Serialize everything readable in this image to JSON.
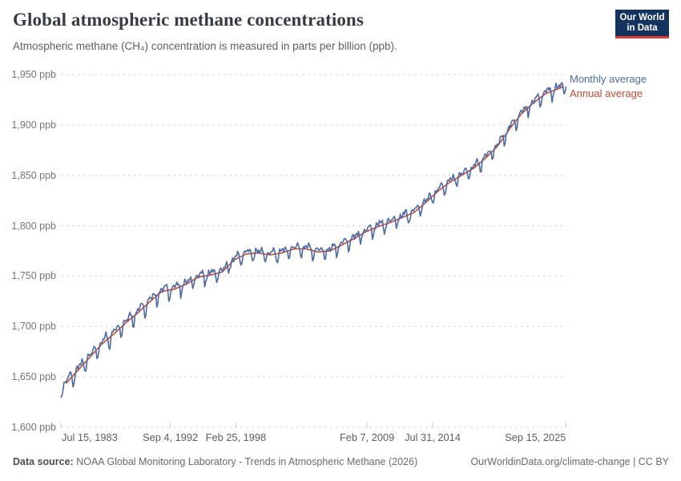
{
  "header": {
    "title": "Global atmospheric methane concentrations",
    "subtitle": "Atmospheric methane (CH₄) concentration is measured in parts per billion (ppb).",
    "logo": {
      "line1": "Our World",
      "line2": "in Data",
      "bg": "#15335f",
      "accent": "#dc3b31"
    }
  },
  "chart_data": {
    "type": "line",
    "title": "Global atmospheric methane concentrations",
    "xlabel": "",
    "ylabel": "ppb",
    "ylim": [
      1600,
      1950
    ],
    "xlim": [
      1983.54,
      2025.75
    ],
    "grid": true,
    "legend_position": "right-of-plot",
    "y_ticks": [
      {
        "value": 1950,
        "label": "1,950 ppb"
      },
      {
        "value": 1900,
        "label": "1,900 ppb"
      },
      {
        "value": 1850,
        "label": "1,850 ppb"
      },
      {
        "value": 1800,
        "label": "1,800 ppb"
      },
      {
        "value": 1750,
        "label": "1,750 ppb"
      },
      {
        "value": 1700,
        "label": "1,700 ppb"
      },
      {
        "value": 1650,
        "label": "1,650 ppb"
      },
      {
        "value": 1600,
        "label": "1,600 ppb"
      }
    ],
    "x_ticks": [
      {
        "t": 1983.54,
        "label": "Jul 15, 1983"
      },
      {
        "t": 1992.68,
        "label": "Sep 4, 1992"
      },
      {
        "t": 1998.15,
        "label": "Feb 25, 1998"
      },
      {
        "t": 2009.1,
        "label": "Feb 7, 2009"
      },
      {
        "t": 2014.58,
        "label": "Jul 31, 2014"
      },
      {
        "t": 2025.71,
        "label": "Sep 15, 2025"
      }
    ],
    "series": [
      {
        "name": "Monthly average",
        "color": "#4c69a7",
        "style": "monthly",
        "start": 1983.55,
        "end": 2025.72,
        "seasonal_offsets": [
          1.5,
          2.5,
          3.5,
          4.5,
          3.5,
          -0.5,
          -8.5,
          -7.0,
          -1.5,
          2.0,
          3.0,
          2.0
        ],
        "seasonal_scale_before_1993": 1.25,
        "noise": [
          [
            1.5,
            2.13,
            0.4
          ],
          [
            1.0,
            0.71,
            1.7
          ],
          [
            0.9,
            3.9,
            2.0
          ]
        ]
      },
      {
        "name": "Annual average",
        "color": "#c64a2d",
        "style": "annual",
        "points": [
          [
            1984,
            1644
          ],
          [
            1985,
            1657
          ],
          [
            1986,
            1670
          ],
          [
            1987,
            1683
          ],
          [
            1988,
            1693
          ],
          [
            1989,
            1704
          ],
          [
            1990,
            1714
          ],
          [
            1991,
            1725
          ],
          [
            1992,
            1735
          ],
          [
            1993,
            1737
          ],
          [
            1994,
            1742
          ],
          [
            1995,
            1749
          ],
          [
            1996,
            1751
          ],
          [
            1997,
            1754
          ],
          [
            1998,
            1766
          ],
          [
            1999,
            1772
          ],
          [
            2000,
            1773
          ],
          [
            2001,
            1771
          ],
          [
            2002,
            1773
          ],
          [
            2003,
            1777
          ],
          [
            2004,
            1777
          ],
          [
            2005,
            1774
          ],
          [
            2006,
            1775
          ],
          [
            2007,
            1781
          ],
          [
            2008,
            1787
          ],
          [
            2009,
            1794
          ],
          [
            2010,
            1799
          ],
          [
            2011,
            1803
          ],
          [
            2012,
            1808
          ],
          [
            2013,
            1813
          ],
          [
            2014,
            1823
          ],
          [
            2015,
            1834
          ],
          [
            2016,
            1843
          ],
          [
            2017,
            1850
          ],
          [
            2018,
            1857
          ],
          [
            2019,
            1867
          ],
          [
            2020,
            1879
          ],
          [
            2021,
            1896
          ],
          [
            2022,
            1911
          ],
          [
            2023,
            1922
          ],
          [
            2024,
            1931
          ],
          [
            2025.5,
            1938
          ]
        ]
      }
    ],
    "grid_color": "#dadada",
    "tick_color": "#c9c9c9"
  },
  "footer": {
    "data_source_label": "Data source:",
    "data_source_text": " NOAA Global Monitoring Laboratory - Trends in Atmospheric Methane (2026)",
    "link": "OurWorldinData.org/climate-change | CC BY"
  }
}
